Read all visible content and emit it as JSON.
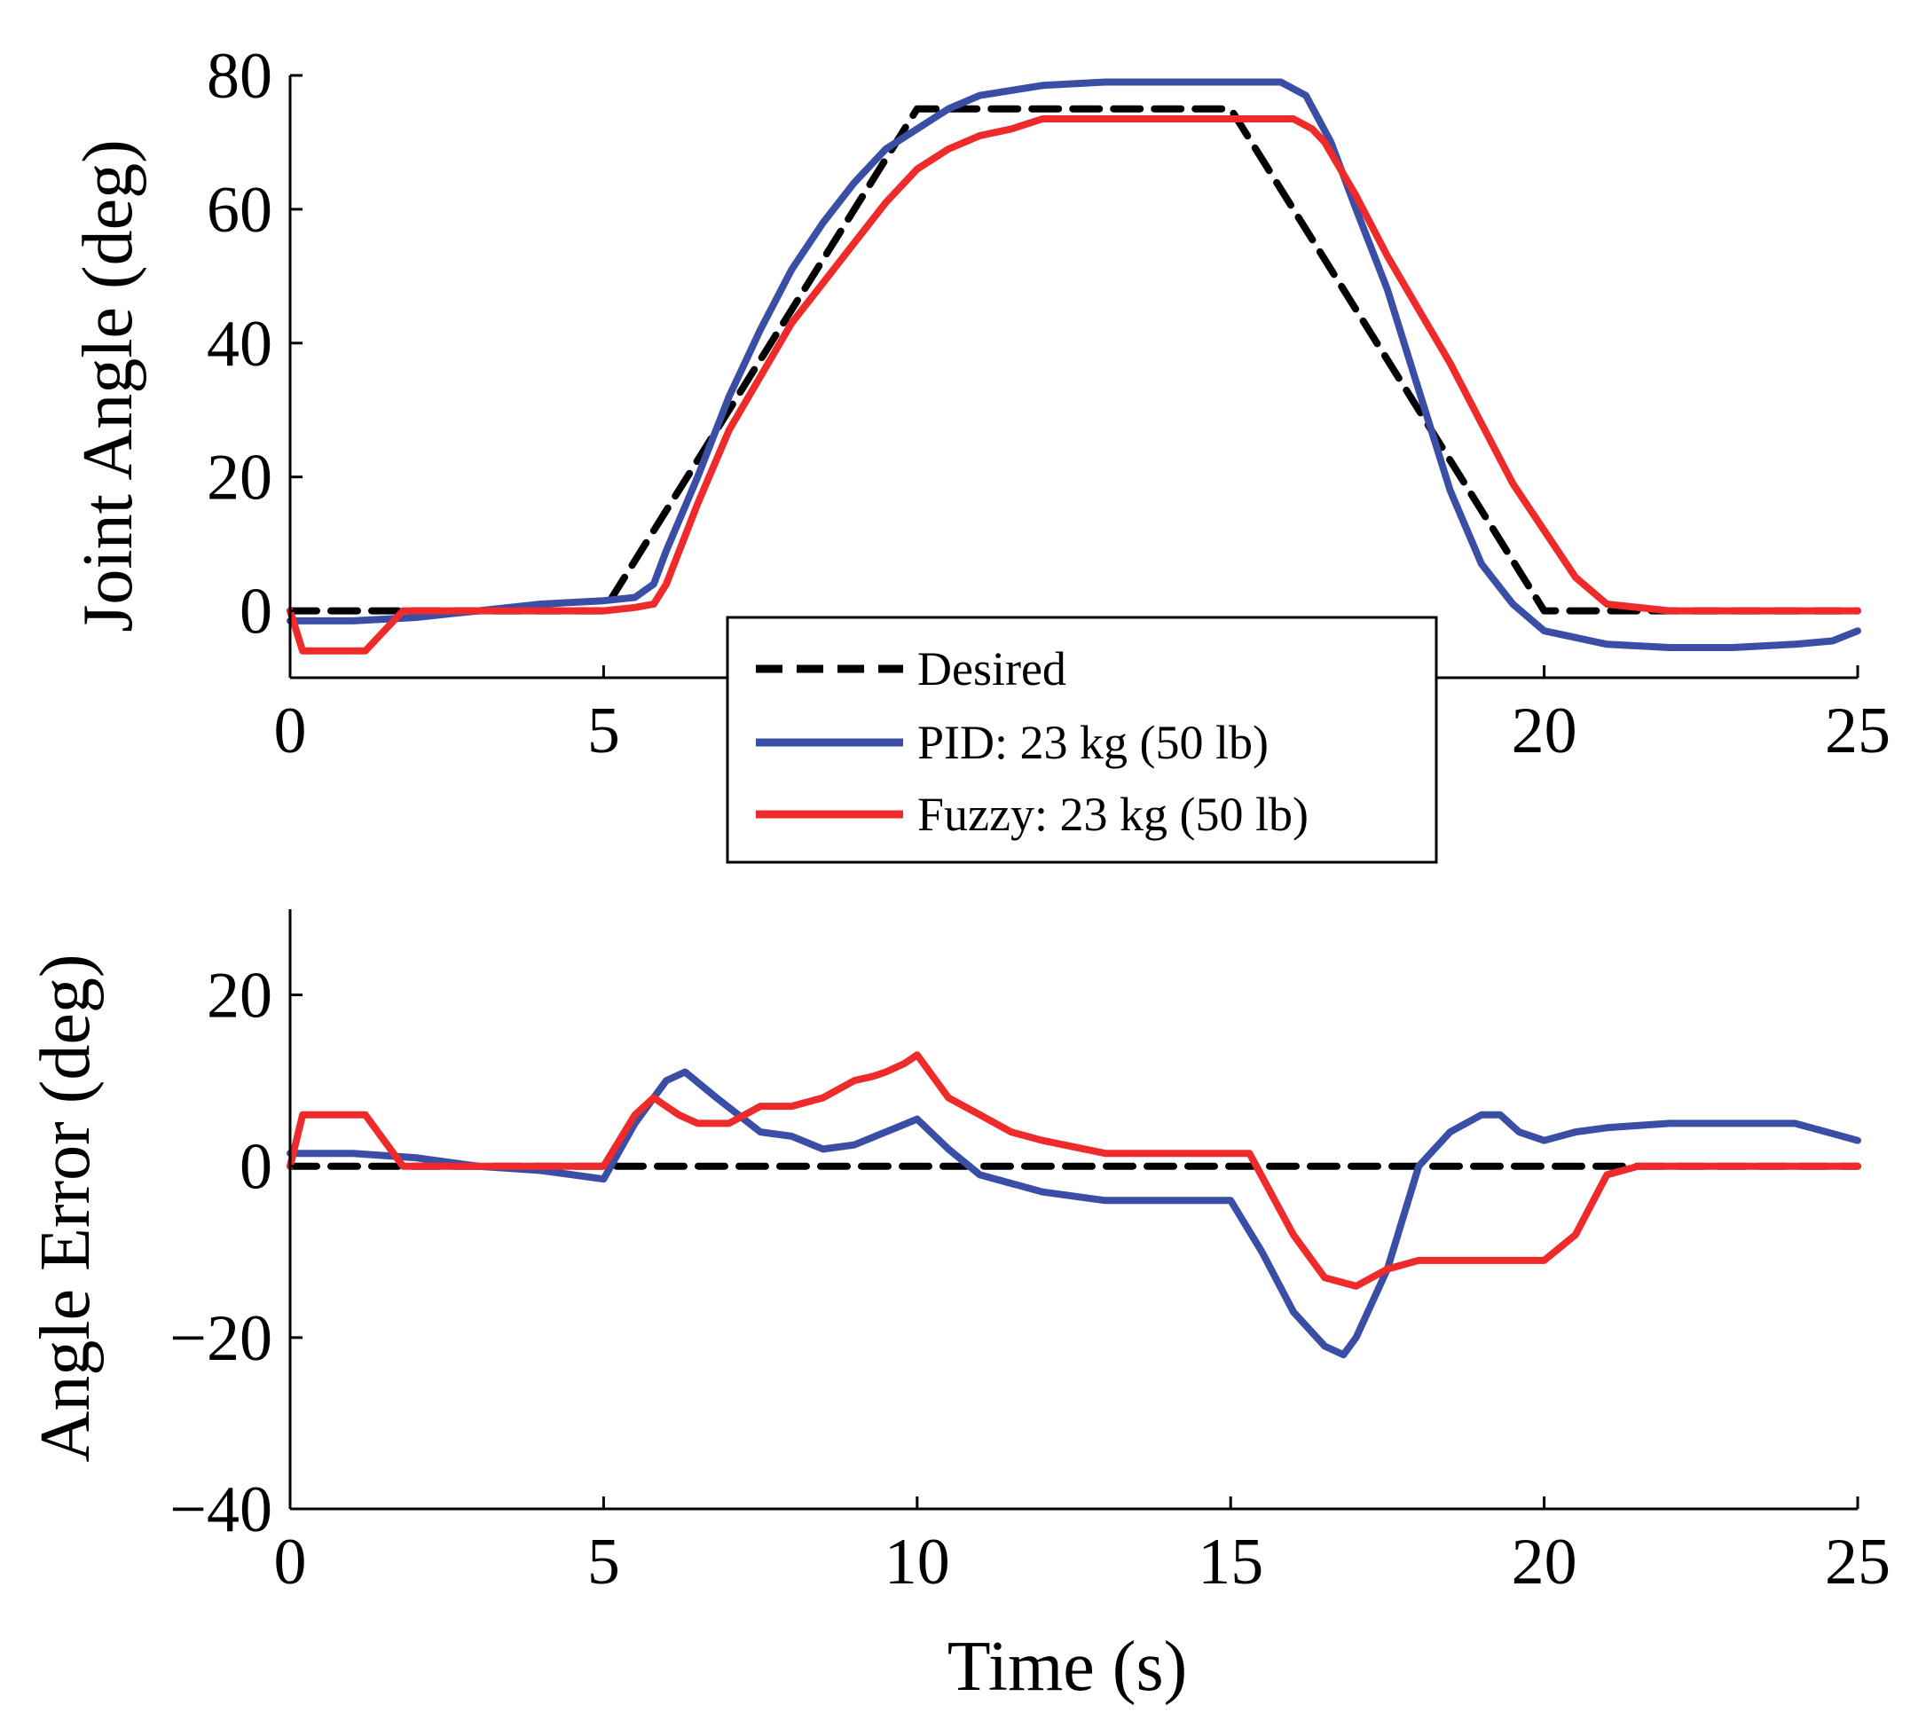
{
  "chart_data": [
    {
      "type": "line",
      "title": "",
      "xlabel": "",
      "ylabel": "Joint Angle (deg)",
      "xlim": [
        0,
        25
      ],
      "ylim": [
        -10,
        80
      ],
      "xticks": [
        0,
        5,
        20,
        25
      ],
      "xtick_labels": [
        "0",
        "5",
        "20",
        "25"
      ],
      "yticks": [
        0,
        20,
        40,
        60,
        80
      ],
      "ytick_labels": [
        "0",
        "20",
        "40",
        "60",
        "80"
      ],
      "grid": false,
      "legend": {
        "location": "lower-center",
        "entries": [
          "Desired",
          "PID: 23 kg (50 lb)",
          "Fuzzy: 23 kg (50 lb)"
        ]
      },
      "series": [
        {
          "name": "Desired",
          "color": "#000000",
          "style": "dashed",
          "x": [
            0,
            5,
            10,
            15,
            20,
            25
          ],
          "y": [
            0,
            0,
            75,
            75,
            0,
            0
          ]
        },
        {
          "name": "PID: 23 kg (50 lb)",
          "color": "#3a4ea6",
          "style": "solid",
          "x": [
            0,
            1,
            2,
            3,
            4,
            5,
            5.5,
            5.8,
            6,
            6.5,
            7,
            7.5,
            8,
            8.5,
            9,
            9.5,
            10,
            10.5,
            11,
            12,
            13,
            14,
            15,
            15.8,
            16.2,
            16.6,
            17,
            17.5,
            18,
            18.5,
            19,
            19.5,
            20,
            21,
            22,
            23,
            24,
            24.6,
            25
          ],
          "y": [
            -1.5,
            -1.5,
            -1,
            0,
            1,
            1.5,
            2,
            4,
            9,
            20,
            32,
            42,
            51,
            58,
            64,
            69,
            72,
            75,
            77,
            78.5,
            79,
            79,
            79,
            79,
            77,
            70,
            60,
            48,
            33,
            18,
            7,
            1,
            -3,
            -5,
            -5.5,
            -5.5,
            -5,
            -4.5,
            -3
          ]
        },
        {
          "name": "Fuzzy: 23 kg (50 lb)",
          "color": "#ee2a2a",
          "style": "solid",
          "x": [
            0,
            0.2,
            0.5,
            1.2,
            1.5,
            1.8,
            3,
            4,
            5,
            5.5,
            5.8,
            6,
            6.5,
            7,
            7.5,
            8,
            8.5,
            9,
            9.5,
            10,
            10.5,
            11,
            11.5,
            12,
            13,
            14,
            15,
            15.5,
            16,
            16.3,
            16.5,
            17,
            17.5,
            18,
            18.5,
            19,
            19.5,
            20,
            20.5,
            21,
            22,
            23,
            24,
            25
          ],
          "y": [
            0,
            -6,
            -6,
            -6,
            -3,
            0,
            0,
            0,
            0,
            0.5,
            1,
            4,
            16,
            27,
            35,
            43,
            49,
            55,
            61,
            66,
            69,
            71,
            72,
            73.5,
            73.5,
            73.5,
            73.5,
            73.5,
            73.5,
            72,
            70,
            62,
            53,
            45,
            37,
            28,
            19,
            12,
            5,
            1,
            0,
            0,
            0,
            0
          ]
        }
      ]
    },
    {
      "type": "line",
      "title": "",
      "xlabel": "Time (s)",
      "ylabel": "Angle Error (deg)",
      "xlim": [
        0,
        25
      ],
      "ylim": [
        -40,
        30
      ],
      "xticks": [
        0,
        5,
        10,
        15,
        20,
        25
      ],
      "xtick_labels": [
        "0",
        "5",
        "10",
        "15",
        "20",
        "25"
      ],
      "yticks": [
        -40,
        -20,
        0,
        20
      ],
      "ytick_labels": [
        "−40",
        "−20",
        "0",
        "20"
      ],
      "grid": false,
      "series": [
        {
          "name": "Desired",
          "color": "#000000",
          "style": "dashed",
          "x": [
            0,
            25
          ],
          "y": [
            0,
            0
          ]
        },
        {
          "name": "PID: 23 kg (50 lb)",
          "color": "#3a4ea6",
          "style": "solid",
          "x": [
            0,
            1,
            2,
            3,
            4,
            5,
            5.5,
            6,
            6.3,
            6.8,
            7.5,
            8,
            8.5,
            9,
            9.5,
            10,
            10.5,
            11,
            12,
            13,
            14,
            15,
            15.5,
            16,
            16.5,
            16.8,
            17,
            17.5,
            18,
            18.5,
            19,
            19.3,
            19.6,
            20,
            20.5,
            21,
            22,
            23,
            24,
            25
          ],
          "y": [
            1.5,
            1.5,
            1,
            0,
            -0.5,
            -1.5,
            5,
            10,
            11,
            8,
            4,
            3.5,
            2,
            2.5,
            4,
            5.5,
            2,
            -1,
            -3,
            -4,
            -4,
            -4,
            -10,
            -17,
            -21,
            -22,
            -20,
            -12,
            0,
            4,
            6,
            6,
            4,
            3,
            4,
            4.5,
            5,
            5,
            5,
            3
          ]
        },
        {
          "name": "Fuzzy: 23 kg (50 lb)",
          "color": "#ee2a2a",
          "style": "solid",
          "x": [
            0,
            0.2,
            0.5,
            1.2,
            1.5,
            1.8,
            3,
            4,
            5,
            5.5,
            5.8,
            6.2,
            6.5,
            7,
            7.5,
            8,
            8.5,
            9,
            9.3,
            9.5,
            9.8,
            10,
            10.5,
            11,
            11.5,
            12,
            13,
            14,
            15,
            15.3,
            16,
            16.5,
            17,
            17.5,
            18,
            18.5,
            19,
            19.5,
            20,
            20.5,
            21,
            21.5,
            22,
            23,
            24,
            25
          ],
          "y": [
            0,
            6,
            6,
            6,
            3,
            0,
            0,
            0,
            0,
            6,
            8,
            6,
            5,
            5,
            7,
            7,
            8,
            10,
            10.5,
            11,
            12,
            13,
            8,
            6,
            4,
            3,
            1.5,
            1.5,
            1.5,
            1.5,
            -8,
            -13,
            -14,
            -12,
            -11,
            -11,
            -11,
            -11,
            -11,
            -8,
            -1,
            0,
            0,
            0,
            0,
            0
          ]
        }
      ]
    }
  ]
}
